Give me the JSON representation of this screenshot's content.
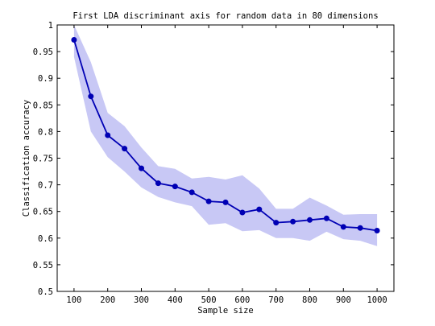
{
  "chart_data": {
    "type": "line",
    "title": "First LDA discriminant axis for random data in 80 dimensions",
    "xlabel": "Sample size",
    "ylabel": "Classification accuracy",
    "xlim": [
      50,
      1050
    ],
    "ylim": [
      0.5,
      1.0
    ],
    "xticks": [
      100,
      200,
      300,
      400,
      500,
      600,
      700,
      800,
      900,
      1000
    ],
    "yticks": [
      0.5,
      0.55,
      0.6,
      0.65,
      0.7,
      0.75,
      0.8,
      0.85,
      0.9,
      0.95,
      1
    ],
    "ytick_labels": [
      "0.5",
      "0.55",
      "0.6",
      "0.65",
      "0.7",
      "0.75",
      "0.8",
      "0.85",
      "0.9",
      "0.95",
      "1"
    ],
    "grid": false,
    "series": [
      {
        "x": [
          100,
          150,
          200,
          250,
          300,
          350,
          400,
          450,
          500,
          550,
          600,
          650,
          700,
          750,
          800,
          850,
          900,
          950,
          1000
        ],
        "values": [
          0.972,
          0.866,
          0.793,
          0.768,
          0.731,
          0.703,
          0.697,
          0.686,
          0.669,
          0.667,
          0.648,
          0.654,
          0.629,
          0.631,
          0.634,
          0.637,
          0.621,
          0.619,
          0.614
        ],
        "band_upper": [
          1.0,
          0.93,
          0.835,
          0.81,
          0.77,
          0.735,
          0.73,
          0.712,
          0.715,
          0.71,
          0.718,
          0.693,
          0.655,
          0.655,
          0.676,
          0.661,
          0.644,
          0.645,
          0.645
        ],
        "band_lower": [
          0.94,
          0.8,
          0.752,
          0.725,
          0.695,
          0.677,
          0.667,
          0.66,
          0.625,
          0.628,
          0.613,
          0.615,
          0.6,
          0.6,
          0.595,
          0.612,
          0.598,
          0.595,
          0.585
        ]
      }
    ],
    "colors": {
      "line": "#0000b4",
      "band": "#c8c8f5",
      "axes": "#000000"
    }
  }
}
